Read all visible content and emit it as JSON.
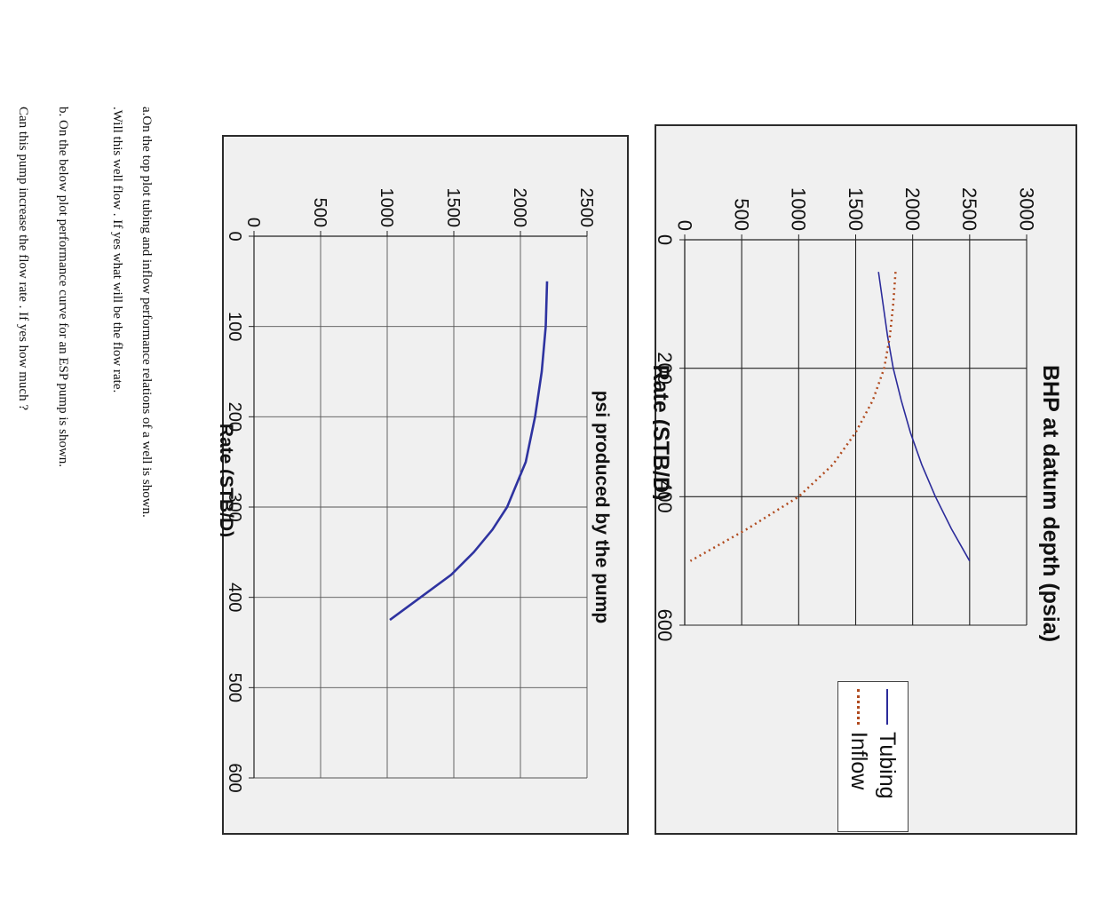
{
  "colors": {
    "tubing": "#2b2b9a",
    "inflow": "#b04a1e",
    "pump": "#2e33a0",
    "grid": "#222222",
    "grid_light": "#555555"
  },
  "questions": {
    "a_line1": "a.On the top plot tubing and inflow performance relations  of a well is shown.",
    "a_line2": ".Will this well flow . If yes what will be the flow rate.",
    "b_line": "b. On the below  plot performance curve for an ESP pump is shown.",
    "c_line": "Can this pump increase the flow rate . If yes  how much ?"
  },
  "chart_data": [
    {
      "type": "line",
      "title": "",
      "xlabel": "Rate (STB/D)",
      "ylabel": "BHP at datum depth (psia)",
      "xlim": [
        0,
        600
      ],
      "ylim": [
        0,
        3000
      ],
      "x_ticks": [
        "0",
        "200",
        "400",
        "600"
      ],
      "y_ticks": [
        "0",
        "500",
        "1000",
        "1500",
        "2000",
        "2500",
        "3000"
      ],
      "grid": true,
      "legend": "bottom-right",
      "series": [
        {
          "name": "Tubing",
          "style": "solid",
          "x": [
            50,
            100,
            150,
            200,
            250,
            300,
            350,
            400,
            450,
            500
          ],
          "y": [
            1700,
            1740,
            1780,
            1830,
            1900,
            1980,
            2080,
            2200,
            2340,
            2500
          ]
        },
        {
          "name": "Inflow",
          "style": "dotted",
          "x": [
            50,
            100,
            150,
            200,
            250,
            300,
            350,
            400,
            450,
            500
          ],
          "y": [
            1850,
            1830,
            1800,
            1750,
            1650,
            1500,
            1300,
            1000,
            550,
            50
          ]
        }
      ]
    },
    {
      "type": "line",
      "title": "",
      "xlabel": "Rate (STB/D)",
      "ylabel": "psi produced by the pump",
      "xlim": [
        0,
        600
      ],
      "ylim": [
        0,
        2500
      ],
      "x_ticks": [
        "0",
        "100",
        "200",
        "300",
        "400",
        "500",
        "600"
      ],
      "y_ticks": [
        "0",
        "500",
        "1000",
        "1500",
        "2000",
        "2500"
      ],
      "grid": true,
      "series": [
        {
          "name": "",
          "style": "solid",
          "x": [
            50,
            100,
            150,
            200,
            250,
            300,
            325,
            350,
            375,
            400,
            425
          ],
          "y": [
            2200,
            2190,
            2160,
            2110,
            2040,
            1900,
            1790,
            1650,
            1480,
            1250,
            1020
          ]
        }
      ]
    }
  ]
}
